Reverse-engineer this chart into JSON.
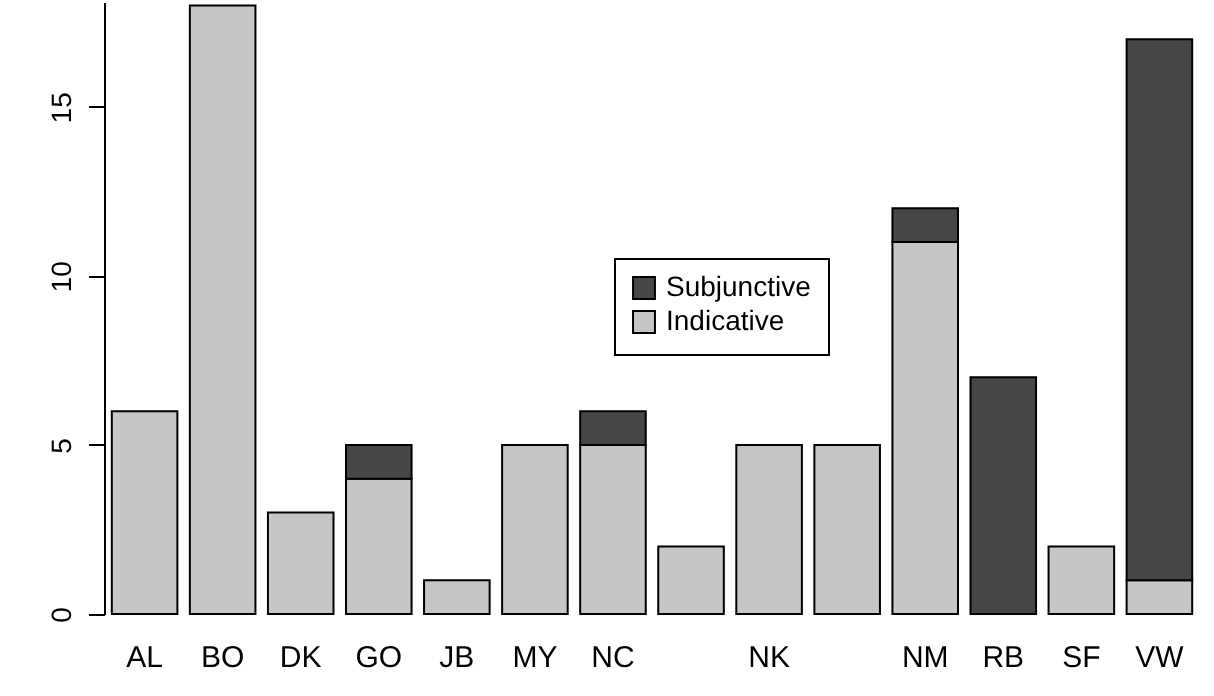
{
  "chart_data": {
    "type": "bar",
    "stacked": true,
    "categories": [
      "AL",
      "BO",
      "DK",
      "GO",
      "JB",
      "MY",
      "NC",
      null,
      "NK",
      null,
      "NM",
      "RB",
      "SF",
      "VW"
    ],
    "series": [
      {
        "name": "Indicative",
        "color": "#c6c6c6",
        "values": [
          6,
          18,
          3,
          4,
          1,
          5,
          5,
          2,
          5,
          5,
          11,
          0,
          2,
          1
        ]
      },
      {
        "name": "Subjunctive",
        "color": "#464646",
        "values": [
          0,
          0,
          0,
          1,
          0,
          0,
          1,
          0,
          0,
          0,
          1,
          7,
          0,
          16
        ]
      }
    ],
    "ylim": [
      0,
      18.1
    ],
    "yticks": [
      0,
      5,
      10,
      15
    ],
    "grid": false,
    "legend": "center"
  }
}
